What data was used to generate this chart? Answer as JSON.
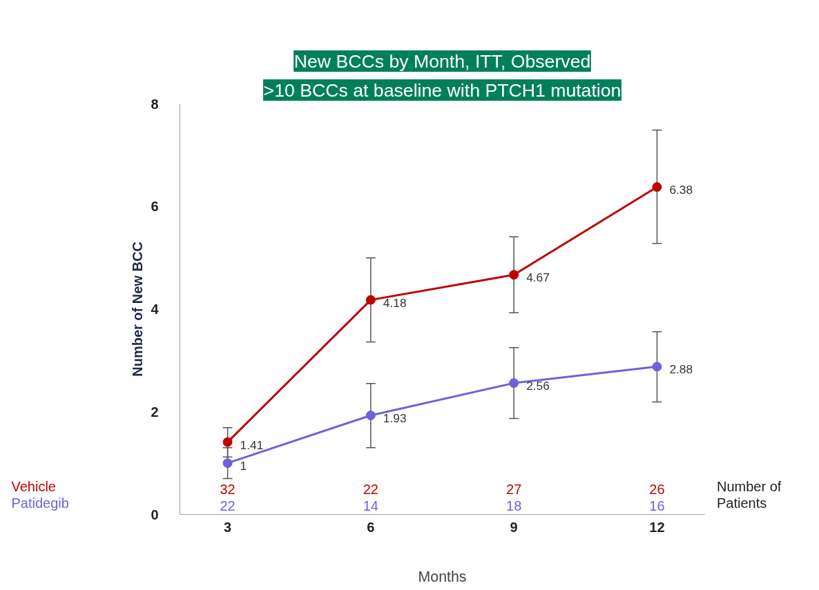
{
  "chart_data": {
    "type": "line",
    "title": "New BCCs by Month, ITT, Observed",
    "subtitle": ">10 BCCs at baseline with PTCH1 mutation",
    "xlabel": "Months",
    "ylabel": "Number of New BCC",
    "x": [
      3,
      6,
      9,
      12
    ],
    "xlim": [
      2,
      13
    ],
    "xticks": [
      3,
      6,
      9,
      12
    ],
    "ylim": [
      0,
      8
    ],
    "yticks": [
      0,
      2,
      4,
      6,
      8
    ],
    "grid": false,
    "marker": "circle",
    "line_style": "solid",
    "data_labels": true,
    "series": [
      {
        "name": "Vehicle",
        "color": "#c00000",
        "values": [
          1.41,
          4.18,
          4.67,
          6.38
        ],
        "errors": [
          [
            1.12,
            1.69
          ],
          [
            3.36,
            5.0
          ],
          [
            3.93,
            5.41
          ],
          [
            5.28,
            7.49
          ]
        ]
      },
      {
        "name": "Patidegib",
        "color": "#6b63d9",
        "values": [
          1,
          1.93,
          2.56,
          2.88
        ],
        "errors": [
          [
            0.7,
            1.3
          ],
          [
            1.3,
            2.55
          ],
          [
            1.87,
            3.25
          ],
          [
            2.19,
            3.56
          ]
        ]
      }
    ],
    "annotations": [
      "32",
      "22",
      "27",
      "26",
      "22",
      "14",
      "18",
      "16",
      "Number of",
      "Patients"
    ]
  }
}
